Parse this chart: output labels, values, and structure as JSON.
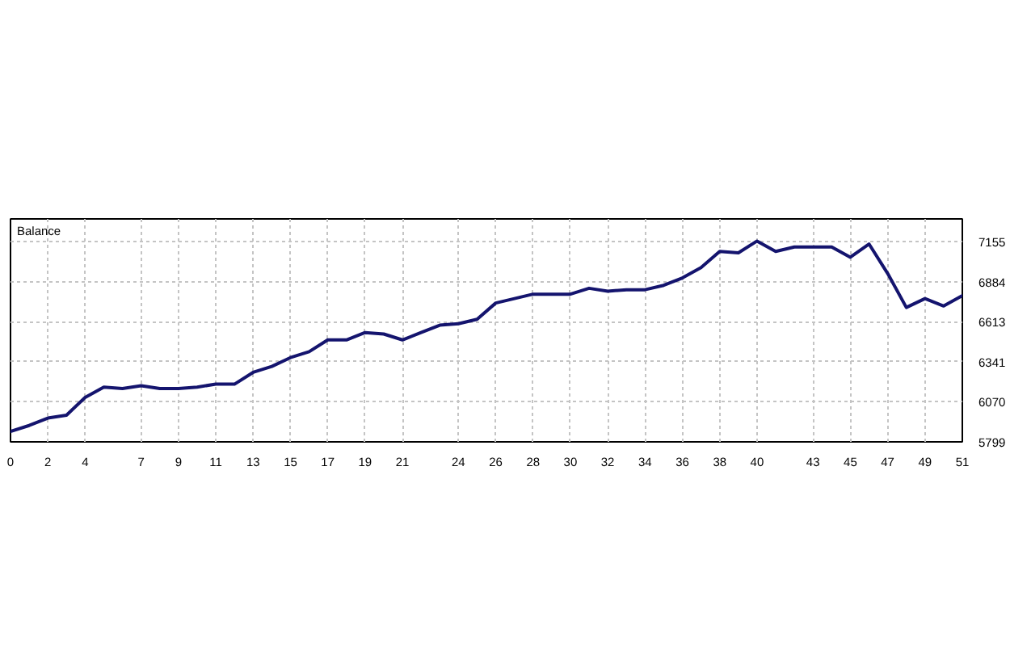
{
  "chart_data": {
    "type": "line",
    "title": "Balance",
    "x": [
      0,
      1,
      2,
      3,
      4,
      5,
      6,
      7,
      8,
      9,
      10,
      11,
      12,
      13,
      14,
      15,
      16,
      17,
      18,
      19,
      20,
      21,
      22,
      23,
      24,
      25,
      26,
      27,
      28,
      29,
      30,
      31,
      32,
      33,
      34,
      35,
      36,
      37,
      38,
      39,
      40,
      41,
      42,
      43,
      44,
      45,
      46,
      47,
      48,
      49,
      50,
      51
    ],
    "series": [
      {
        "color": "#14146e",
        "values": [
          5870,
          5910,
          5960,
          5980,
          6100,
          6170,
          6160,
          6180,
          6160,
          6160,
          6170,
          6190,
          6190,
          6270,
          6310,
          6370,
          6410,
          6490,
          6490,
          6540,
          6530,
          6490,
          6540,
          6590,
          6600,
          6630,
          6740,
          6770,
          6800,
          6800,
          6800,
          6840,
          6820,
          6830,
          6830,
          6860,
          6910,
          6980,
          7090,
          7080,
          7160,
          7090,
          7120,
          7120,
          7120,
          7050,
          7140,
          6940,
          6710,
          6770,
          6720,
          6790
        ]
      }
    ],
    "xlim": [
      0,
      51
    ],
    "xticks": [
      0,
      2,
      4,
      7,
      9,
      11,
      13,
      15,
      17,
      19,
      21,
      24,
      26,
      28,
      30,
      32,
      34,
      36,
      38,
      40,
      43,
      45,
      47,
      49,
      51
    ],
    "ylim": [
      5799,
      7310
    ],
    "yticks": [
      5799,
      6070,
      6341,
      6613,
      6884,
      7155
    ],
    "grid": true,
    "line_style": "solid"
  }
}
